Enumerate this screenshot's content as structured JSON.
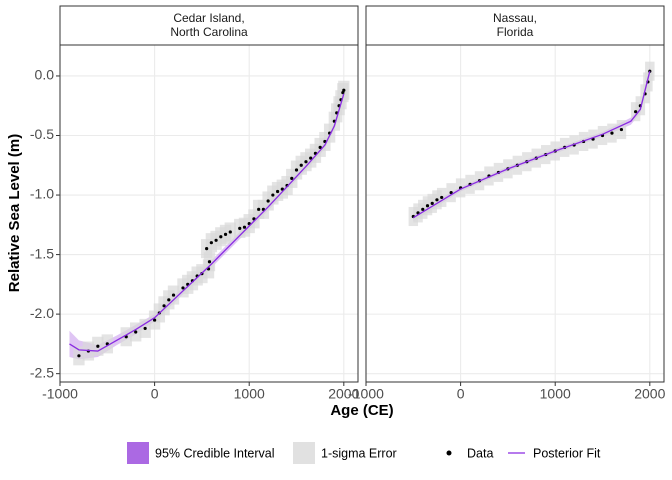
{
  "y_label": "Relative Sea Level (m)",
  "x_label": "Age (CE)",
  "chart_data": [
    {
      "type": "scatter",
      "facet": [
        "Cedar Island,",
        "North Carolina"
      ],
      "xlim": [
        -1000,
        2150
      ],
      "xticks": [
        -1000,
        0,
        1000,
        2000
      ],
      "ylim": [
        -2.57,
        0.26
      ],
      "yticks": [
        {
          "value": -2.5,
          "label": "-2.5"
        },
        {
          "value": -2,
          "label": "-2.0"
        },
        {
          "value": -1.5,
          "label": "-1.5"
        },
        {
          "value": -1,
          "label": "-1.0"
        },
        {
          "value": -0.5,
          "label": "-0.5"
        },
        {
          "value": 0,
          "label": "0.0"
        }
      ],
      "grid": true,
      "series": [
        {
          "name": "95% Credible Interval",
          "style": "band",
          "color": "#a259e0",
          "x": [
            -900,
            -800,
            -600,
            -400,
            -200,
            0,
            200,
            400,
            600,
            800,
            1000,
            1200,
            1400,
            1600,
            1800,
            1900,
            2000
          ],
          "lower": [
            -2.36,
            -2.38,
            -2.36,
            -2.26,
            -2.17,
            -2.06,
            -1.91,
            -1.76,
            -1.61,
            -1.45,
            -1.29,
            -1.13,
            -0.96,
            -0.79,
            -0.61,
            -0.45,
            -0.19
          ],
          "upper": [
            -2.14,
            -2.22,
            -2.26,
            -2.18,
            -2.09,
            -2.0,
            -1.85,
            -1.7,
            -1.55,
            -1.39,
            -1.23,
            -1.07,
            -0.9,
            -0.73,
            -0.55,
            -0.39,
            -0.11
          ]
        },
        {
          "name": "1-sigma Error",
          "style": "box",
          "color": "#d9d9d9",
          "x_error": 60,
          "y_error": 0.08
        },
        {
          "name": "Data",
          "style": "point",
          "color": "#000000",
          "x": [
            -800,
            -700,
            -600,
            -500,
            -300,
            -200,
            -100,
            0,
            50,
            100,
            150,
            200,
            300,
            350,
            400,
            450,
            500,
            550,
            570,
            580,
            600,
            650,
            700,
            750,
            800,
            900,
            950,
            1000,
            1050,
            1100,
            1150,
            1200,
            1250,
            1300,
            1350,
            1400,
            1450,
            1500,
            1550,
            1600,
            1650,
            1700,
            1750,
            1800,
            1850,
            1900,
            1925,
            1950,
            1970,
            1990,
            2000
          ],
          "values": [
            -2.35,
            -2.31,
            -2.27,
            -2.25,
            -2.19,
            -2.15,
            -2.12,
            -2.05,
            -1.99,
            -1.93,
            -1.88,
            -1.84,
            -1.78,
            -1.75,
            -1.72,
            -1.68,
            -1.66,
            -1.45,
            -1.62,
            -1.56,
            -1.4,
            -1.38,
            -1.35,
            -1.33,
            -1.31,
            -1.28,
            -1.27,
            -1.24,
            -1.2,
            -1.12,
            -1.12,
            -1.05,
            -1.0,
            -0.97,
            -0.95,
            -0.92,
            -0.86,
            -0.79,
            -0.75,
            -0.72,
            -0.69,
            -0.65,
            -0.6,
            -0.55,
            -0.48,
            -0.38,
            -0.31,
            -0.25,
            -0.2,
            -0.14,
            -0.12
          ]
        },
        {
          "name": "Posterior Fit",
          "style": "line",
          "color": "#8a2be2",
          "x": [
            -900,
            -800,
            -600,
            -400,
            -200,
            0,
            200,
            400,
            600,
            800,
            1000,
            1200,
            1400,
            1600,
            1800,
            1900,
            2000
          ],
          "values": [
            -2.25,
            -2.3,
            -2.31,
            -2.22,
            -2.13,
            -2.03,
            -1.88,
            -1.73,
            -1.58,
            -1.42,
            -1.26,
            -1.1,
            -0.93,
            -0.76,
            -0.58,
            -0.42,
            -0.15
          ]
        }
      ]
    },
    {
      "type": "scatter",
      "facet": [
        "Nassau,",
        "Florida"
      ],
      "xlim": [
        -1000,
        2150
      ],
      "xticks": [
        -1000,
        0,
        1000,
        2000
      ],
      "ylim": [
        -2.57,
        0.26
      ],
      "yticks": [
        -2.5,
        -2,
        -1.5,
        -1,
        -0.5,
        0
      ],
      "grid": true,
      "series": [
        {
          "name": "95% Credible Interval",
          "style": "band",
          "color": "#a259e0",
          "x": [
            -500,
            0,
            500,
            1000,
            1500,
            1800,
            1900,
            2000
          ],
          "lower": [
            -1.22,
            -0.97,
            -0.8,
            -0.65,
            -0.51,
            -0.41,
            -0.31,
            0.0
          ],
          "upper": [
            -1.16,
            -0.93,
            -0.76,
            -0.61,
            -0.47,
            -0.35,
            -0.25,
            0.08
          ]
        },
        {
          "name": "1-sigma Error",
          "style": "box",
          "color": "#d9d9d9",
          "x_error": 50,
          "y_error": 0.08
        },
        {
          "name": "Data",
          "style": "point",
          "color": "#000000",
          "x": [
            -500,
            -450,
            -400,
            -350,
            -300,
            -250,
            -200,
            -100,
            0,
            100,
            200,
            300,
            400,
            500,
            600,
            700,
            800,
            900,
            1000,
            1100,
            1200,
            1300,
            1400,
            1500,
            1600,
            1700,
            1850,
            1900,
            1950,
            1980,
            2000
          ],
          "values": [
            -1.18,
            -1.15,
            -1.12,
            -1.09,
            -1.07,
            -1.04,
            -1.02,
            -0.98,
            -0.94,
            -0.91,
            -0.88,
            -0.84,
            -0.81,
            -0.78,
            -0.75,
            -0.72,
            -0.69,
            -0.66,
            -0.63,
            -0.6,
            -0.58,
            -0.55,
            -0.53,
            -0.5,
            -0.48,
            -0.45,
            -0.3,
            -0.25,
            -0.15,
            -0.05,
            0.04
          ]
        },
        {
          "name": "Posterior Fit",
          "style": "line",
          "color": "#8a2be2",
          "x": [
            -500,
            0,
            500,
            1000,
            1500,
            1800,
            1900,
            2000
          ],
          "values": [
            -1.19,
            -0.95,
            -0.78,
            -0.63,
            -0.49,
            -0.38,
            -0.28,
            0.04
          ]
        }
      ]
    }
  ]
}
